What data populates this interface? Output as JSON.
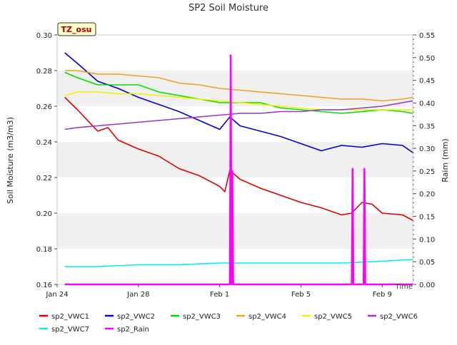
{
  "chart_data": {
    "type": "line",
    "title": "SP2 Soil Moisture",
    "site_label": "TZ_osu",
    "xlabel": "Time",
    "ylabel": "Soil Moisture (m3/m3)",
    "y2label": "Raim (mm)",
    "xlim": [
      "2024-01-24",
      "2024-02-10T12:00"
    ],
    "ylim": [
      0.16,
      0.3
    ],
    "y2lim": [
      0.0,
      0.55
    ],
    "x_ticks": [
      {
        "date": "2024-01-24",
        "label": "Jan 24"
      },
      {
        "date": "2024-01-28",
        "label": "Jan 28"
      },
      {
        "date": "2024-02-01",
        "label": "Feb 1"
      },
      {
        "date": "2024-02-05",
        "label": "Feb 5"
      },
      {
        "date": "2024-02-09",
        "label": "Feb 9"
      }
    ],
    "y_ticks": [
      "0.16",
      "0.18",
      "0.20",
      "0.22",
      "0.24",
      "0.26",
      "0.28",
      "0.30"
    ],
    "y2_ticks": [
      "0.00",
      "0.05",
      "0.10",
      "0.15",
      "0.20",
      "0.25",
      "0.30",
      "0.35",
      "0.40",
      "0.45",
      "0.50",
      "0.55"
    ],
    "grid": "horizontal bands",
    "legend_position": "bottom",
    "series": [
      {
        "name": "sp2_VWC1",
        "color": "#e00000",
        "axis": "left",
        "values": [
          [
            "2024-01-24T09:00",
            0.265
          ],
          [
            "2024-01-25",
            0.258
          ],
          [
            "2024-01-26",
            0.246
          ],
          [
            "2024-01-26T12:00",
            0.248
          ],
          [
            "2024-01-27",
            0.241
          ],
          [
            "2024-01-28",
            0.236
          ],
          [
            "2024-01-29",
            0.232
          ],
          [
            "2024-01-30",
            0.225
          ],
          [
            "2024-01-31",
            0.221
          ],
          [
            "2024-02-01",
            0.215
          ],
          [
            "2024-02-01T06:00",
            0.212
          ],
          [
            "2024-02-01T12:00",
            0.224
          ],
          [
            "2024-02-02",
            0.219
          ],
          [
            "2024-02-03",
            0.214
          ],
          [
            "2024-02-04",
            0.21
          ],
          [
            "2024-02-05",
            0.206
          ],
          [
            "2024-02-06",
            0.203
          ],
          [
            "2024-02-07",
            0.199
          ],
          [
            "2024-02-07T12:00",
            0.2
          ],
          [
            "2024-02-08",
            0.206
          ],
          [
            "2024-02-08T12:00",
            0.205
          ],
          [
            "2024-02-09",
            0.2
          ],
          [
            "2024-02-10",
            0.199
          ],
          [
            "2024-02-10T12:00",
            0.196
          ]
        ]
      },
      {
        "name": "sp2_VWC2",
        "color": "#0000cc",
        "axis": "left",
        "values": [
          [
            "2024-01-24T09:00",
            0.29
          ],
          [
            "2024-01-25",
            0.284
          ],
          [
            "2024-01-26",
            0.274
          ],
          [
            "2024-01-27",
            0.27
          ],
          [
            "2024-01-28",
            0.265
          ],
          [
            "2024-01-29",
            0.261
          ],
          [
            "2024-01-30",
            0.257
          ],
          [
            "2024-01-31",
            0.252
          ],
          [
            "2024-02-01",
            0.247
          ],
          [
            "2024-02-01T12:00",
            0.254
          ],
          [
            "2024-02-02",
            0.249
          ],
          [
            "2024-02-03",
            0.246
          ],
          [
            "2024-02-04",
            0.243
          ],
          [
            "2024-02-05",
            0.239
          ],
          [
            "2024-02-06",
            0.235
          ],
          [
            "2024-02-07",
            0.238
          ],
          [
            "2024-02-08",
            0.237
          ],
          [
            "2024-02-09",
            0.239
          ],
          [
            "2024-02-10",
            0.238
          ],
          [
            "2024-02-10T12:00",
            0.234
          ]
        ]
      },
      {
        "name": "sp2_VWC3",
        "color": "#00e000",
        "axis": "left",
        "values": [
          [
            "2024-01-24T09:00",
            0.279
          ],
          [
            "2024-01-25",
            0.276
          ],
          [
            "2024-01-26",
            0.272
          ],
          [
            "2024-01-27",
            0.272
          ],
          [
            "2024-01-28",
            0.272
          ],
          [
            "2024-01-29",
            0.268
          ],
          [
            "2024-01-30",
            0.266
          ],
          [
            "2024-01-31",
            0.264
          ],
          [
            "2024-02-01",
            0.262
          ],
          [
            "2024-02-02",
            0.262
          ],
          [
            "2024-02-03",
            0.262
          ],
          [
            "2024-02-04",
            0.259
          ],
          [
            "2024-02-05",
            0.258
          ],
          [
            "2024-02-06",
            0.257
          ],
          [
            "2024-02-07",
            0.256
          ],
          [
            "2024-02-08",
            0.257
          ],
          [
            "2024-02-09",
            0.258
          ],
          [
            "2024-02-10",
            0.257
          ],
          [
            "2024-02-10T12:00",
            0.256
          ]
        ]
      },
      {
        "name": "sp2_VWC4",
        "color": "#f0a020",
        "axis": "left",
        "values": [
          [
            "2024-01-24T09:00",
            0.28
          ],
          [
            "2024-01-25",
            0.28
          ],
          [
            "2024-01-26",
            0.278
          ],
          [
            "2024-01-27",
            0.278
          ],
          [
            "2024-01-28",
            0.277
          ],
          [
            "2024-01-29",
            0.276
          ],
          [
            "2024-01-30",
            0.273
          ],
          [
            "2024-01-31",
            0.272
          ],
          [
            "2024-02-01",
            0.27
          ],
          [
            "2024-02-02",
            0.269
          ],
          [
            "2024-02-03",
            0.268
          ],
          [
            "2024-02-04",
            0.267
          ],
          [
            "2024-02-05",
            0.266
          ],
          [
            "2024-02-06",
            0.265
          ],
          [
            "2024-02-07",
            0.264
          ],
          [
            "2024-02-08",
            0.264
          ],
          [
            "2024-02-09",
            0.263
          ],
          [
            "2024-02-10",
            0.264
          ],
          [
            "2024-02-10T12:00",
            0.265
          ]
        ]
      },
      {
        "name": "sp2_VWC5",
        "color": "#f0f000",
        "axis": "left",
        "values": [
          [
            "2024-01-24T09:00",
            0.266
          ],
          [
            "2024-01-25",
            0.268
          ],
          [
            "2024-01-26",
            0.268
          ],
          [
            "2024-01-27",
            0.267
          ],
          [
            "2024-01-28",
            0.267
          ],
          [
            "2024-01-29",
            0.266
          ],
          [
            "2024-01-30",
            0.265
          ],
          [
            "2024-01-31",
            0.264
          ],
          [
            "2024-02-01",
            0.263
          ],
          [
            "2024-02-02",
            0.262
          ],
          [
            "2024-02-03",
            0.261
          ],
          [
            "2024-02-04",
            0.26
          ],
          [
            "2024-02-05",
            0.259
          ],
          [
            "2024-02-06",
            0.258
          ],
          [
            "2024-02-07",
            0.258
          ],
          [
            "2024-02-08",
            0.258
          ],
          [
            "2024-02-09",
            0.258
          ],
          [
            "2024-02-10",
            0.258
          ],
          [
            "2024-02-10T12:00",
            0.258
          ]
        ]
      },
      {
        "name": "sp2_VWC6",
        "color": "#9933cc",
        "axis": "left",
        "values": [
          [
            "2024-01-24T09:00",
            0.247
          ],
          [
            "2024-01-25",
            0.248
          ],
          [
            "2024-01-26",
            0.249
          ],
          [
            "2024-01-27",
            0.25
          ],
          [
            "2024-01-28",
            0.251
          ],
          [
            "2024-01-29",
            0.252
          ],
          [
            "2024-01-30",
            0.253
          ],
          [
            "2024-01-31",
            0.254
          ],
          [
            "2024-02-01",
            0.255
          ],
          [
            "2024-02-02",
            0.256
          ],
          [
            "2024-02-03",
            0.256
          ],
          [
            "2024-02-04",
            0.257
          ],
          [
            "2024-02-05",
            0.257
          ],
          [
            "2024-02-06",
            0.258
          ],
          [
            "2024-02-07",
            0.258
          ],
          [
            "2024-02-08",
            0.259
          ],
          [
            "2024-02-09",
            0.26
          ],
          [
            "2024-02-10",
            0.262
          ],
          [
            "2024-02-10T12:00",
            0.263
          ]
        ]
      },
      {
        "name": "sp2_VWC7",
        "color": "#00eeee",
        "axis": "left",
        "values": [
          [
            "2024-01-24T09:00",
            0.17
          ],
          [
            "2024-01-26",
            0.17
          ],
          [
            "2024-01-28",
            0.171
          ],
          [
            "2024-01-30",
            0.171
          ],
          [
            "2024-02-01",
            0.172
          ],
          [
            "2024-02-03",
            0.172
          ],
          [
            "2024-02-05",
            0.172
          ],
          [
            "2024-02-07",
            0.172
          ],
          [
            "2024-02-09",
            0.173
          ],
          [
            "2024-02-10T12:00",
            0.174
          ]
        ]
      },
      {
        "name": "sp2_Rain",
        "color": "#ff00ff",
        "axis": "right",
        "values": [
          [
            "2024-01-24T09:00",
            0.0
          ],
          [
            "2024-02-01T12:00",
            0.0
          ],
          [
            "2024-02-01T13:00",
            0.505
          ],
          [
            "2024-02-01T14:00",
            0.0
          ],
          [
            "2024-02-01T15:00",
            0.25
          ],
          [
            "2024-02-01T16:00",
            0.0
          ],
          [
            "2024-02-07T12:00",
            0.0
          ],
          [
            "2024-02-07T13:00",
            0.255
          ],
          [
            "2024-02-07T14:00",
            0.0
          ],
          [
            "2024-02-08T02:00",
            0.0
          ],
          [
            "2024-02-08T03:00",
            0.255
          ],
          [
            "2024-02-08T04:00",
            0.0
          ],
          [
            "2024-02-10T12:00",
            0.0
          ]
        ]
      }
    ]
  }
}
